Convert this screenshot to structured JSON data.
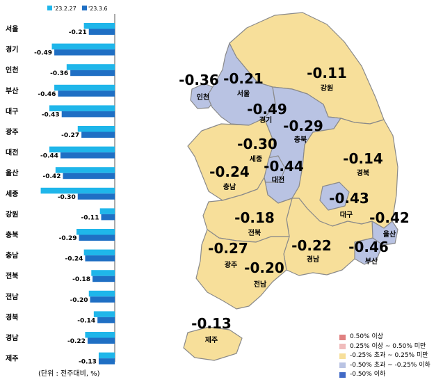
{
  "chart_data": {
    "type": "bar",
    "orientation": "horizontal",
    "categories": [
      "서울",
      "경기",
      "인천",
      "부산",
      "대구",
      "광주",
      "대전",
      "울산",
      "세종",
      "강원",
      "충북",
      "충남",
      "전북",
      "전남",
      "경북",
      "경남",
      "제주"
    ],
    "series": [
      {
        "name": "'23.2.27",
        "color": "#1fb6ea",
        "values": [
          -0.25,
          -0.51,
          -0.39,
          -0.49,
          -0.53,
          -0.3,
          -0.53,
          -0.48,
          -0.6,
          -0.12,
          -0.31,
          -0.25,
          -0.19,
          -0.21,
          -0.17,
          -0.24,
          -0.13
        ]
      },
      {
        "name": "'23.3.6",
        "color": "#1f6fc4",
        "values": [
          -0.21,
          -0.49,
          -0.36,
          -0.46,
          -0.43,
          -0.27,
          -0.44,
          -0.42,
          -0.3,
          -0.11,
          -0.29,
          -0.24,
          -0.18,
          -0.2,
          -0.14,
          -0.22,
          -0.13
        ]
      }
    ],
    "data_labels": [
      "-0.21",
      "-0.49",
      "-0.36",
      "-0.46",
      "-0.43",
      "-0.27",
      "-0.44",
      "-0.42",
      "-0.30",
      "-0.11",
      "-0.29",
      "-0.24",
      "-0.18",
      "-0.20",
      "-0.14",
      "-0.22",
      "-0.13"
    ],
    "xlim": [
      -0.62,
      0
    ],
    "unit_note": "(단위 : 전주대비, %)"
  },
  "map": {
    "colors": {
      "band_1": "#e08080",
      "band_2": "#f0bcbc",
      "band_3": "#f7df9a",
      "band_4": "#b9c3e3",
      "band_5": "#4169c6",
      "border": "#8a8a8a"
    },
    "regions": [
      {
        "key": "seoul",
        "name": "서울",
        "value": "-0.21"
      },
      {
        "key": "incheon",
        "name": "인천",
        "value": "-0.36"
      },
      {
        "key": "gyeonggi",
        "name": "경기",
        "value": "-0.49"
      },
      {
        "key": "gangwon",
        "name": "강원",
        "value": "-0.11"
      },
      {
        "key": "chungbuk",
        "name": "충북",
        "value": "-0.29"
      },
      {
        "key": "sejong",
        "name": "세종",
        "value": "-0.30"
      },
      {
        "key": "daejeon",
        "name": "대전",
        "value": "-0.44"
      },
      {
        "key": "chungnam",
        "name": "충남",
        "value": "-0.24"
      },
      {
        "key": "gyeongbuk",
        "name": "경북",
        "value": "-0.14"
      },
      {
        "key": "daegu",
        "name": "대구",
        "value": "-0.43"
      },
      {
        "key": "ulsan",
        "name": "울산",
        "value": "-0.42"
      },
      {
        "key": "busan",
        "name": "부산",
        "value": "-0.46"
      },
      {
        "key": "gyeongnam",
        "name": "경남",
        "value": "-0.22"
      },
      {
        "key": "jeonbuk",
        "name": "전북",
        "value": "-0.18"
      },
      {
        "key": "gwangju",
        "name": "광주",
        "value": "-0.27"
      },
      {
        "key": "jeonnam",
        "name": "전남",
        "value": "-0.20"
      },
      {
        "key": "jeju",
        "name": "제주",
        "value": "-0.13"
      }
    ]
  },
  "legend": [
    {
      "label": "0.50% 이상",
      "color": "#e08080"
    },
    {
      "label": "0.25% 이상 ~ 0.50% 미만",
      "color": "#f0bcbc"
    },
    {
      "label": "-0.25% 초과 ~ 0.25% 미만",
      "color": "#f7df9a"
    },
    {
      "label": "-0.50% 초과 ~ -0.25% 이하",
      "color": "#b9c3e3"
    },
    {
      "label": "-0.50% 이하",
      "color": "#4169c6"
    }
  ]
}
